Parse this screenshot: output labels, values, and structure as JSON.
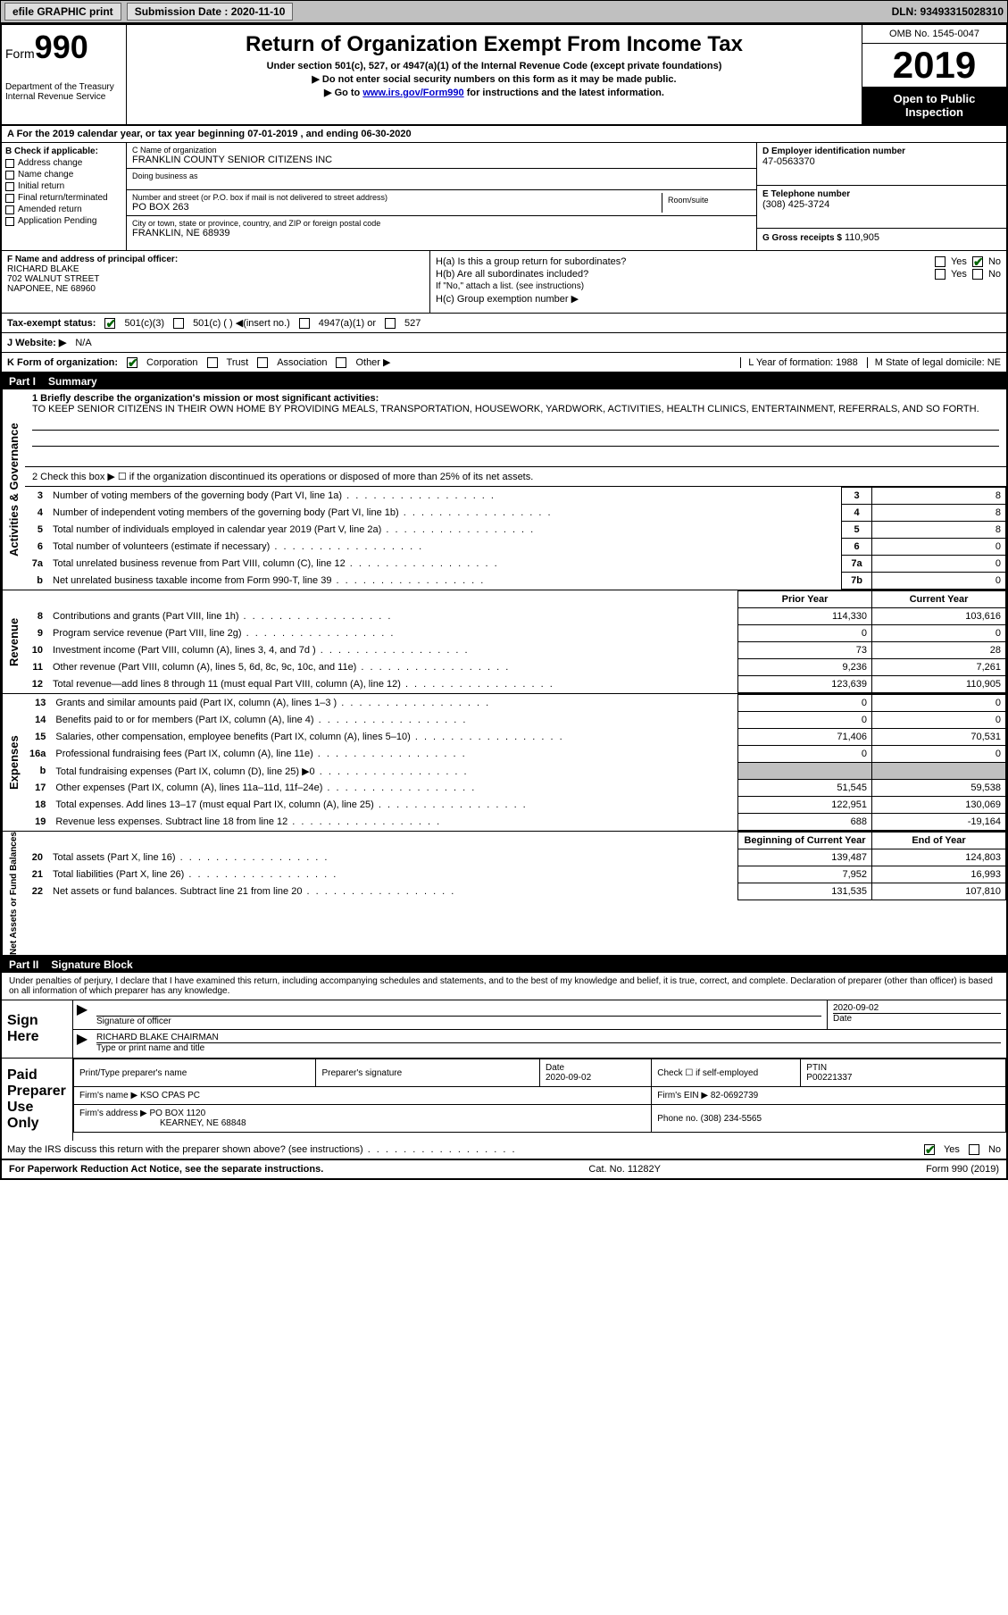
{
  "header": {
    "efile": "efile GRAPHIC print",
    "submission_label": "Submission Date : 2020-11-10",
    "dln": "DLN: 93493315028310"
  },
  "top": {
    "form_word": "Form",
    "form_num": "990",
    "dept1": "Department of the Treasury",
    "dept2": "Internal Revenue Service",
    "title": "Return of Organization Exempt From Income Tax",
    "subtitle": "Under section 501(c), 527, or 4947(a)(1) of the Internal Revenue Code (except private foundations)",
    "instr1": "▶ Do not enter social security numbers on this form as it may be made public.",
    "instr2_pre": "▶ Go to ",
    "instr2_link": "www.irs.gov/Form990",
    "instr2_post": " for instructions and the latest information.",
    "omb": "OMB No. 1545-0047",
    "year": "2019",
    "open1": "Open to Public",
    "open2": "Inspection"
  },
  "line_a": "A For the 2019 calendar year, or tax year beginning 07-01-2019    , and ending 06-30-2020",
  "boxB": {
    "title": "B Check if applicable:",
    "opts": [
      "Address change",
      "Name change",
      "Initial return",
      "Final return/terminated",
      "Amended return",
      "Application Pending"
    ]
  },
  "boxC": {
    "name_label": "C Name of organization",
    "name": "FRANKLIN COUNTY SENIOR CITIZENS INC",
    "dba_label": "Doing business as",
    "addr_label": "Number and street (or P.O. box if mail is not delivered to street address)",
    "addr": "PO BOX 263",
    "room_label": "Room/suite",
    "city_label": "City or town, state or province, country, and ZIP or foreign postal code",
    "city": "FRANKLIN, NE  68939"
  },
  "boxD": {
    "label": "D Employer identification number",
    "val": "47-0563370"
  },
  "boxE": {
    "label": "E Telephone number",
    "val": "(308) 425-3724"
  },
  "boxG": {
    "label": "G Gross receipts $",
    "val": "110,905"
  },
  "boxF": {
    "label": "F  Name and address of principal officer:",
    "name": "RICHARD BLAKE",
    "addr1": "702 WALNUT STREET",
    "addr2": "NAPONEE, NE  68960"
  },
  "boxH": {
    "ha": "H(a)  Is this a group return for subordinates?",
    "hb": "H(b)  Are all subordinates included?",
    "hb_note": "If \"No,\" attach a list. (see instructions)",
    "hc": "H(c)  Group exemption number ▶",
    "yes": "Yes",
    "no": "No"
  },
  "taxexempt": {
    "label": "Tax-exempt status:",
    "o1": "501(c)(3)",
    "o2": "501(c) (   ) ◀(insert no.)",
    "o3": "4947(a)(1) or",
    "o4": "527"
  },
  "website": {
    "label": "J   Website: ▶",
    "val": "N/A"
  },
  "lineK": {
    "label": "K Form of organization:",
    "o1": "Corporation",
    "o2": "Trust",
    "o3": "Association",
    "o4": "Other ▶",
    "L": "L Year of formation: 1988",
    "M": "M State of legal domicile: NE"
  },
  "part1": {
    "tag": "Part I",
    "title": "Summary"
  },
  "mission": {
    "label": "1   Briefly describe the organization's mission or most significant activities:",
    "text": "TO KEEP SENIOR CITIZENS IN THEIR OWN HOME BY PROVIDING MEALS, TRANSPORTATION, HOUSEWORK, YARDWORK, ACTIVITIES, HEALTH CLINICS, ENTERTAINMENT, REFERRALS, AND SO FORTH."
  },
  "line2": "2    Check this box ▶ ☐  if the organization discontinued its operations or disposed of more than 25% of its net assets.",
  "gov_side": "Activities & Governance",
  "gov_rows": [
    {
      "n": "3",
      "d": "Number of voting members of the governing body (Part VI, line 1a)",
      "box": "3",
      "v": "8"
    },
    {
      "n": "4",
      "d": "Number of independent voting members of the governing body (Part VI, line 1b)",
      "box": "4",
      "v": "8"
    },
    {
      "n": "5",
      "d": "Total number of individuals employed in calendar year 2019 (Part V, line 2a)",
      "box": "5",
      "v": "8"
    },
    {
      "n": "6",
      "d": "Total number of volunteers (estimate if necessary)",
      "box": "6",
      "v": "0"
    },
    {
      "n": "7a",
      "d": "Total unrelated business revenue from Part VIII, column (C), line 12",
      "box": "7a",
      "v": "0"
    },
    {
      "n": "b",
      "d": "Net unrelated business taxable income from Form 990-T, line 39",
      "box": "7b",
      "v": "0"
    }
  ],
  "rev_side": "Revenue",
  "two_col_header": {
    "py": "Prior Year",
    "cy": "Current Year"
  },
  "rev_rows": [
    {
      "n": "8",
      "d": "Contributions and grants (Part VIII, line 1h)",
      "py": "114,330",
      "cy": "103,616"
    },
    {
      "n": "9",
      "d": "Program service revenue (Part VIII, line 2g)",
      "py": "0",
      "cy": "0"
    },
    {
      "n": "10",
      "d": "Investment income (Part VIII, column (A), lines 3, 4, and 7d )",
      "py": "73",
      "cy": "28"
    },
    {
      "n": "11",
      "d": "Other revenue (Part VIII, column (A), lines 5, 6d, 8c, 9c, 10c, and 11e)",
      "py": "9,236",
      "cy": "7,261"
    },
    {
      "n": "12",
      "d": "Total revenue—add lines 8 through 11 (must equal Part VIII, column (A), line 12)",
      "py": "123,639",
      "cy": "110,905"
    }
  ],
  "exp_side": "Expenses",
  "exp_rows": [
    {
      "n": "13",
      "d": "Grants and similar amounts paid (Part IX, column (A), lines 1–3 )",
      "py": "0",
      "cy": "0"
    },
    {
      "n": "14",
      "d": "Benefits paid to or for members (Part IX, column (A), line 4)",
      "py": "0",
      "cy": "0"
    },
    {
      "n": "15",
      "d": "Salaries, other compensation, employee benefits (Part IX, column (A), lines 5–10)",
      "py": "71,406",
      "cy": "70,531"
    },
    {
      "n": "16a",
      "d": "Professional fundraising fees (Part IX, column (A), line 11e)",
      "py": "0",
      "cy": "0"
    },
    {
      "n": "b",
      "d": "Total fundraising expenses (Part IX, column (D), line 25) ▶0",
      "py": "",
      "cy": "",
      "shaded": true
    },
    {
      "n": "17",
      "d": "Other expenses (Part IX, column (A), lines 11a–11d, 11f–24e)",
      "py": "51,545",
      "cy": "59,538"
    },
    {
      "n": "18",
      "d": "Total expenses. Add lines 13–17 (must equal Part IX, column (A), line 25)",
      "py": "122,951",
      "cy": "130,069"
    },
    {
      "n": "19",
      "d": "Revenue less expenses. Subtract line 18 from line 12",
      "py": "688",
      "cy": "-19,164"
    }
  ],
  "na_side": "Net Assets or Fund Balances",
  "na_header": {
    "py": "Beginning of Current Year",
    "cy": "End of Year"
  },
  "na_rows": [
    {
      "n": "20",
      "d": "Total assets (Part X, line 16)",
      "py": "139,487",
      "cy": "124,803"
    },
    {
      "n": "21",
      "d": "Total liabilities (Part X, line 26)",
      "py": "7,952",
      "cy": "16,993"
    },
    {
      "n": "22",
      "d": "Net assets or fund balances. Subtract line 21 from line 20",
      "py": "131,535",
      "cy": "107,810"
    }
  ],
  "part2": {
    "tag": "Part II",
    "title": "Signature Block"
  },
  "perjury": "Under penalties of perjury, I declare that I have examined this return, including accompanying schedules and statements, and to the best of my knowledge and belief, it is true, correct, and complete. Declaration of preparer (other than officer) is based on all information of which preparer has any knowledge.",
  "sign": {
    "left": "Sign Here",
    "sig_label": "Signature of officer",
    "date_label": "Date",
    "date": "2020-09-02",
    "name": "RICHARD BLAKE  CHAIRMAN",
    "name_label": "Type or print name and title"
  },
  "prep": {
    "left": "Paid Preparer Use Only",
    "h1": "Print/Type preparer's name",
    "h2": "Preparer's signature",
    "h3": "Date",
    "date": "2020-09-02",
    "h4": "Check ☐ if self-employed",
    "h5": "PTIN",
    "ptin": "P00221337",
    "firm_label": "Firm's name    ▶",
    "firm": "KSO CPAS PC",
    "ein_label": "Firm's EIN ▶",
    "ein": "82-0692739",
    "addr_label": "Firm's address ▶",
    "addr1": "PO BOX 1120",
    "addr2": "KEARNEY, NE  68848",
    "phone_label": "Phone no.",
    "phone": "(308) 234-5565"
  },
  "irs_discuss": "May the IRS discuss this return with the preparer shown above? (see instructions)",
  "footer": {
    "left": "For Paperwork Reduction Act Notice, see the separate instructions.",
    "mid": "Cat. No. 11282Y",
    "right": "Form 990 (2019)"
  }
}
